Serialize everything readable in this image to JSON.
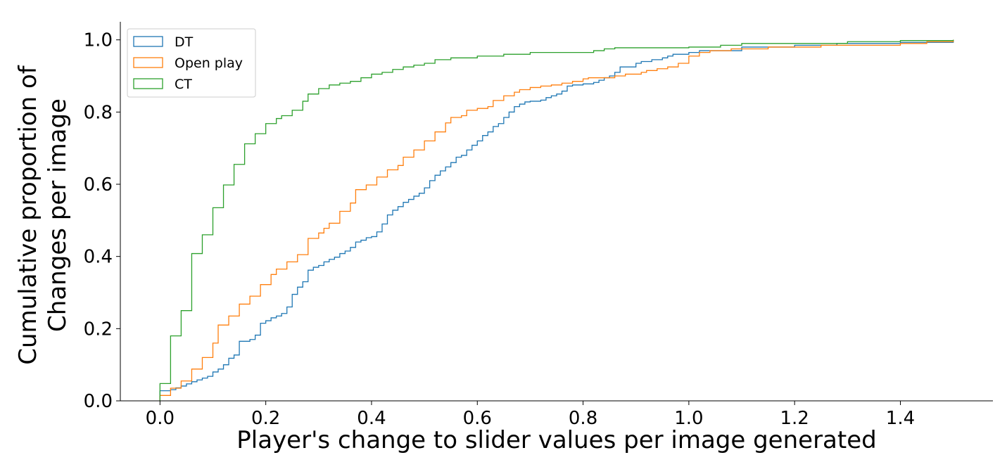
{
  "chart_data": {
    "type": "line",
    "step": true,
    "xlabel": "Player's change to slider values per image generated",
    "ylabel_lines": [
      "Cumulative proportion of",
      "Changes per image"
    ],
    "xlim": [
      -0.075,
      1.575
    ],
    "ylim": [
      0.0,
      1.05
    ],
    "xticks": [
      0.0,
      0.2,
      0.4,
      0.6,
      0.8,
      1.0,
      1.2,
      1.4
    ],
    "xtick_labels": [
      "0.0",
      "0.2",
      "0.4",
      "0.6",
      "0.8",
      "1.0",
      "1.2",
      "1.4"
    ],
    "yticks": [
      0.0,
      0.2,
      0.4,
      0.6,
      0.8,
      1.0
    ],
    "ytick_labels": [
      "0.0",
      "0.2",
      "0.4",
      "0.6",
      "0.8",
      "1.0"
    ],
    "grid": false,
    "legend_position": "top-left",
    "series": [
      {
        "name": "DT",
        "color": "#1f77b4",
        "points": [
          [
            0.0,
            0.0
          ],
          [
            0.0,
            0.028
          ],
          [
            0.02,
            0.031
          ],
          [
            0.03,
            0.036
          ],
          [
            0.04,
            0.041
          ],
          [
            0.05,
            0.047
          ],
          [
            0.06,
            0.053
          ],
          [
            0.07,
            0.058
          ],
          [
            0.08,
            0.063
          ],
          [
            0.09,
            0.068
          ],
          [
            0.1,
            0.08
          ],
          [
            0.11,
            0.088
          ],
          [
            0.12,
            0.1
          ],
          [
            0.13,
            0.118
          ],
          [
            0.14,
            0.127
          ],
          [
            0.15,
            0.165
          ],
          [
            0.17,
            0.17
          ],
          [
            0.18,
            0.182
          ],
          [
            0.19,
            0.215
          ],
          [
            0.2,
            0.222
          ],
          [
            0.21,
            0.23
          ],
          [
            0.22,
            0.235
          ],
          [
            0.23,
            0.242
          ],
          [
            0.24,
            0.26
          ],
          [
            0.25,
            0.295
          ],
          [
            0.26,
            0.315
          ],
          [
            0.27,
            0.33
          ],
          [
            0.28,
            0.362
          ],
          [
            0.29,
            0.37
          ],
          [
            0.3,
            0.375
          ],
          [
            0.31,
            0.385
          ],
          [
            0.32,
            0.392
          ],
          [
            0.33,
            0.398
          ],
          [
            0.34,
            0.408
          ],
          [
            0.35,
            0.415
          ],
          [
            0.36,
            0.425
          ],
          [
            0.37,
            0.44
          ],
          [
            0.38,
            0.445
          ],
          [
            0.39,
            0.452
          ],
          [
            0.4,
            0.455
          ],
          [
            0.41,
            0.468
          ],
          [
            0.42,
            0.49
          ],
          [
            0.43,
            0.515
          ],
          [
            0.44,
            0.528
          ],
          [
            0.45,
            0.538
          ],
          [
            0.46,
            0.55
          ],
          [
            0.47,
            0.558
          ],
          [
            0.48,
            0.567
          ],
          [
            0.49,
            0.575
          ],
          [
            0.5,
            0.59
          ],
          [
            0.51,
            0.61
          ],
          [
            0.52,
            0.625
          ],
          [
            0.53,
            0.637
          ],
          [
            0.54,
            0.648
          ],
          [
            0.55,
            0.66
          ],
          [
            0.56,
            0.675
          ],
          [
            0.57,
            0.68
          ],
          [
            0.58,
            0.695
          ],
          [
            0.59,
            0.708
          ],
          [
            0.6,
            0.72
          ],
          [
            0.61,
            0.735
          ],
          [
            0.62,
            0.745
          ],
          [
            0.63,
            0.76
          ],
          [
            0.64,
            0.768
          ],
          [
            0.65,
            0.785
          ],
          [
            0.66,
            0.8
          ],
          [
            0.67,
            0.815
          ],
          [
            0.68,
            0.822
          ],
          [
            0.69,
            0.828
          ],
          [
            0.7,
            0.83
          ],
          [
            0.72,
            0.833
          ],
          [
            0.73,
            0.84
          ],
          [
            0.74,
            0.845
          ],
          [
            0.75,
            0.85
          ],
          [
            0.76,
            0.858
          ],
          [
            0.77,
            0.872
          ],
          [
            0.78,
            0.875
          ],
          [
            0.8,
            0.878
          ],
          [
            0.82,
            0.882
          ],
          [
            0.83,
            0.888
          ],
          [
            0.84,
            0.895
          ],
          [
            0.85,
            0.9
          ],
          [
            0.86,
            0.91
          ],
          [
            0.87,
            0.925
          ],
          [
            0.9,
            0.935
          ],
          [
            0.91,
            0.94
          ],
          [
            0.93,
            0.945
          ],
          [
            0.95,
            0.95
          ],
          [
            0.96,
            0.955
          ],
          [
            0.97,
            0.96
          ],
          [
            1.0,
            0.965
          ],
          [
            1.02,
            0.97
          ],
          [
            1.1,
            0.98
          ],
          [
            1.2,
            0.985
          ],
          [
            1.28,
            0.99
          ],
          [
            1.4,
            0.993
          ],
          [
            1.5,
            1.0
          ]
        ]
      },
      {
        "name": "Open play",
        "color": "#ff7f0e",
        "points": [
          [
            0.0,
            0.0
          ],
          [
            0.0,
            0.015
          ],
          [
            0.02,
            0.035
          ],
          [
            0.04,
            0.055
          ],
          [
            0.06,
            0.088
          ],
          [
            0.08,
            0.12
          ],
          [
            0.1,
            0.16
          ],
          [
            0.11,
            0.21
          ],
          [
            0.13,
            0.235
          ],
          [
            0.15,
            0.268
          ],
          [
            0.17,
            0.29
          ],
          [
            0.19,
            0.322
          ],
          [
            0.21,
            0.35
          ],
          [
            0.22,
            0.365
          ],
          [
            0.24,
            0.385
          ],
          [
            0.26,
            0.405
          ],
          [
            0.28,
            0.45
          ],
          [
            0.3,
            0.465
          ],
          [
            0.31,
            0.478
          ],
          [
            0.32,
            0.492
          ],
          [
            0.34,
            0.525
          ],
          [
            0.36,
            0.548
          ],
          [
            0.37,
            0.585
          ],
          [
            0.39,
            0.598
          ],
          [
            0.41,
            0.62
          ],
          [
            0.43,
            0.64
          ],
          [
            0.45,
            0.652
          ],
          [
            0.46,
            0.675
          ],
          [
            0.48,
            0.695
          ],
          [
            0.5,
            0.72
          ],
          [
            0.52,
            0.745
          ],
          [
            0.54,
            0.77
          ],
          [
            0.55,
            0.785
          ],
          [
            0.57,
            0.79
          ],
          [
            0.58,
            0.805
          ],
          [
            0.6,
            0.81
          ],
          [
            0.62,
            0.815
          ],
          [
            0.63,
            0.832
          ],
          [
            0.65,
            0.845
          ],
          [
            0.67,
            0.855
          ],
          [
            0.68,
            0.862
          ],
          [
            0.7,
            0.868
          ],
          [
            0.72,
            0.872
          ],
          [
            0.74,
            0.875
          ],
          [
            0.76,
            0.88
          ],
          [
            0.78,
            0.885
          ],
          [
            0.8,
            0.892
          ],
          [
            0.81,
            0.895
          ],
          [
            0.86,
            0.9
          ],
          [
            0.88,
            0.905
          ],
          [
            0.91,
            0.91
          ],
          [
            0.92,
            0.915
          ],
          [
            0.94,
            0.92
          ],
          [
            0.96,
            0.925
          ],
          [
            0.98,
            0.935
          ],
          [
            1.0,
            0.955
          ],
          [
            1.02,
            0.965
          ],
          [
            1.04,
            0.97
          ],
          [
            1.08,
            0.975
          ],
          [
            1.15,
            0.98
          ],
          [
            1.25,
            0.985
          ],
          [
            1.4,
            0.99
          ],
          [
            1.45,
            0.995
          ],
          [
            1.5,
            1.0
          ]
        ]
      },
      {
        "name": "CT",
        "color": "#2ca02c",
        "points": [
          [
            0.0,
            0.0
          ],
          [
            0.0,
            0.048
          ],
          [
            0.02,
            0.18
          ],
          [
            0.04,
            0.25
          ],
          [
            0.06,
            0.408
          ],
          [
            0.08,
            0.46
          ],
          [
            0.1,
            0.535
          ],
          [
            0.12,
            0.598
          ],
          [
            0.14,
            0.655
          ],
          [
            0.16,
            0.712
          ],
          [
            0.18,
            0.74
          ],
          [
            0.2,
            0.768
          ],
          [
            0.22,
            0.782
          ],
          [
            0.23,
            0.79
          ],
          [
            0.25,
            0.805
          ],
          [
            0.27,
            0.83
          ],
          [
            0.28,
            0.85
          ],
          [
            0.3,
            0.865
          ],
          [
            0.32,
            0.875
          ],
          [
            0.34,
            0.88
          ],
          [
            0.36,
            0.885
          ],
          [
            0.38,
            0.895
          ],
          [
            0.4,
            0.905
          ],
          [
            0.42,
            0.91
          ],
          [
            0.44,
            0.918
          ],
          [
            0.46,
            0.925
          ],
          [
            0.48,
            0.93
          ],
          [
            0.5,
            0.935
          ],
          [
            0.52,
            0.945
          ],
          [
            0.55,
            0.95
          ],
          [
            0.6,
            0.955
          ],
          [
            0.65,
            0.96
          ],
          [
            0.7,
            0.965
          ],
          [
            0.76,
            0.965
          ],
          [
            0.82,
            0.97
          ],
          [
            0.84,
            0.975
          ],
          [
            0.86,
            0.978
          ],
          [
            1.0,
            0.98
          ],
          [
            1.06,
            0.985
          ],
          [
            1.1,
            0.99
          ],
          [
            1.3,
            0.995
          ],
          [
            1.4,
            0.998
          ],
          [
            1.5,
            1.0
          ]
        ]
      }
    ]
  }
}
